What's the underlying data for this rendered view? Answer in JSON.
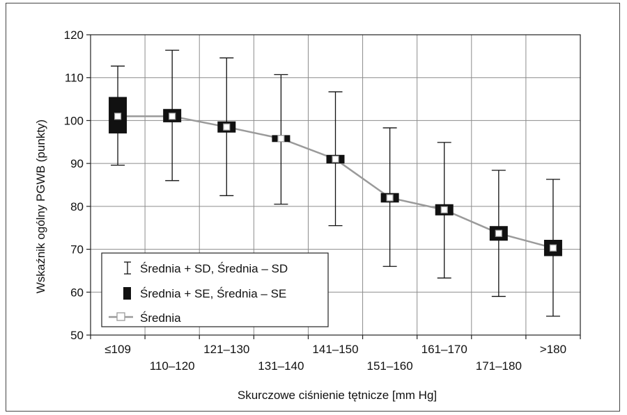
{
  "chart_data": {
    "type": "box-errorbar",
    "xlabel": "Skurczowe ciśnienie tętnicze [mm Hg]",
    "ylabel": "Wskaźnik ogólny PGWB (punkty)",
    "ylim": [
      50,
      120
    ],
    "yticks": [
      50,
      60,
      70,
      80,
      90,
      100,
      110,
      120
    ],
    "grid": true,
    "categories": [
      "≤109",
      "110–120",
      "121–130",
      "131–140",
      "141–150",
      "151–160",
      "161–170",
      "171–180",
      ">180"
    ],
    "series": [
      {
        "name": "Średnia",
        "values": [
          101.0,
          101.0,
          98.5,
          95.8,
          91.0,
          82.0,
          79.2,
          73.7,
          70.3
        ]
      },
      {
        "name": "Średnia + SD, Średnia – SD",
        "upper": [
          112.7,
          116.4,
          114.6,
          110.7,
          106.7,
          98.3,
          94.9,
          88.4,
          86.3
        ],
        "lower": [
          89.6,
          86.0,
          82.5,
          80.5,
          75.5,
          66.0,
          63.3,
          59.0,
          54.4
        ]
      },
      {
        "name": "Średnia + SE, Średnia – SE",
        "upper": [
          105.5,
          102.7,
          99.8,
          96.6,
          92.0,
          83.1,
          80.5,
          75.4,
          72.2
        ],
        "lower": [
          97.0,
          99.6,
          97.2,
          95.0,
          90.0,
          80.9,
          77.9,
          72.0,
          68.4
        ]
      }
    ],
    "legend": {
      "position": "bottom-left",
      "entries": [
        "Średnia + SD, Średnia – SD",
        "Średnia + SE, Średnia – SE",
        "Średnia"
      ]
    },
    "colors": {
      "box": "#111111",
      "line": "#9a9a9a",
      "grid": "#8c8c8c",
      "whisker": "#111111"
    }
  }
}
